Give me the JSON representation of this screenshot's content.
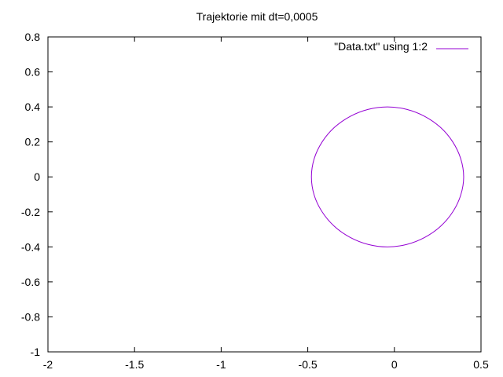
{
  "chart_data": {
    "type": "line",
    "title": "Trajektorie mit dt=0,0005",
    "xlabel": "",
    "ylabel": "",
    "xlim": [
      -2,
      0.5
    ],
    "ylim": [
      -1,
      0.8
    ],
    "x_ticks": [
      -2,
      -1.5,
      -1,
      -0.5,
      0,
      0.5
    ],
    "y_ticks": [
      -1,
      -0.8,
      -0.6,
      -0.4,
      -0.2,
      0,
      0.2,
      0.4,
      0.6,
      0.8
    ],
    "x_tick_labels": [
      "-2",
      "-1.5",
      "-1",
      "-0.5",
      "0",
      "0.5"
    ],
    "y_tick_labels": [
      "-1",
      "-0.8",
      "-0.6",
      "-0.4",
      "-0.2",
      "0",
      "0.2",
      "0.4",
      "0.6",
      "0.8"
    ],
    "grid": false,
    "legend_position": "top-right",
    "series": [
      {
        "name": "\"Data.txt\" using 1:2",
        "color": "#9400d3",
        "x": [
          0.4,
          0.383,
          0.337,
          0.266,
          0.175,
          0.071,
          -0.04,
          -0.151,
          -0.255,
          -0.346,
          -0.417,
          -0.463,
          -0.479,
          -0.463,
          -0.417,
          -0.346,
          -0.255,
          -0.151,
          -0.04,
          0.071,
          0.175,
          0.266,
          0.337,
          0.383,
          0.4
        ],
        "y": [
          0,
          0.104,
          0.2,
          0.283,
          0.346,
          0.386,
          0.4,
          0.386,
          0.346,
          0.283,
          0.2,
          0.104,
          0,
          -0.104,
          -0.2,
          -0.283,
          -0.346,
          -0.386,
          -0.4,
          -0.386,
          -0.346,
          -0.283,
          -0.2,
          -0.104,
          0
        ]
      }
    ]
  }
}
